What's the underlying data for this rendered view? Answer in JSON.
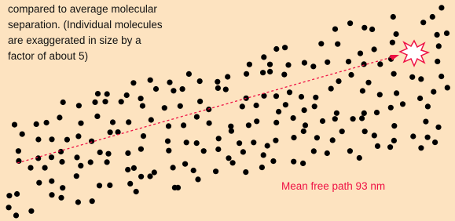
{
  "caption_lines": [
    "compared to average molecular",
    "separation. (Individual molecules",
    "are exaggerated in size by a",
    "factor of about 5)"
  ],
  "label": "Mean free path 93 nm"
}
